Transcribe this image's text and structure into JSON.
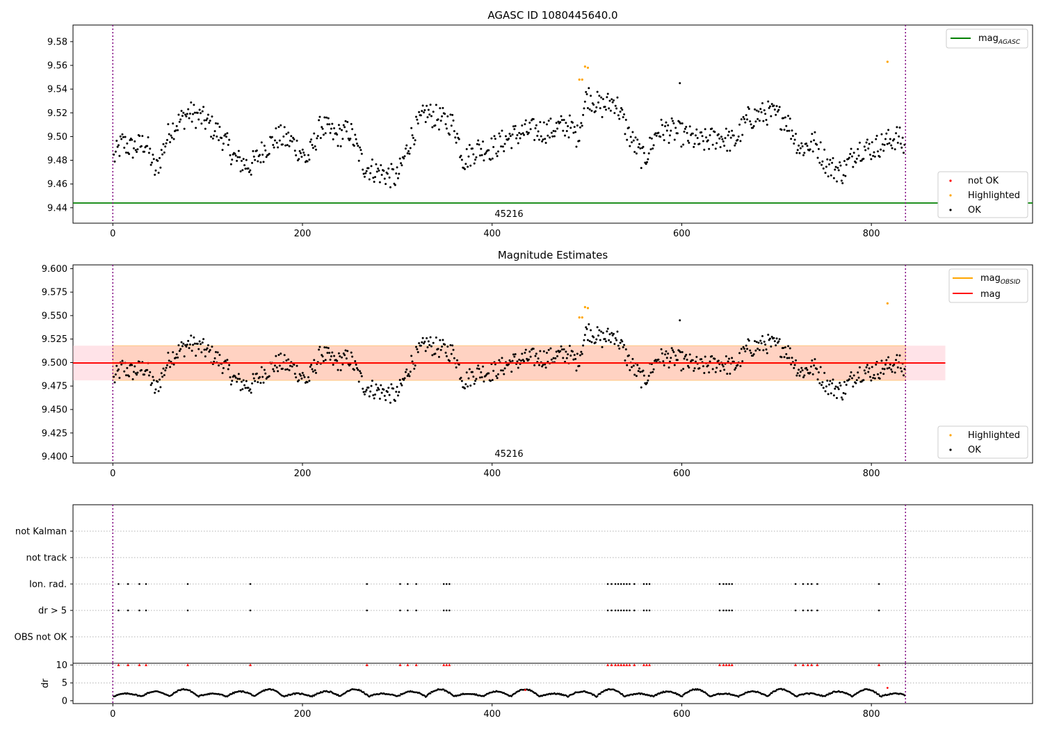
{
  "chart_data": [
    {
      "type": "scatter",
      "title": "AGASC ID 1080445640.0",
      "xlabel": "",
      "ylabel": "",
      "xlim": [
        -42,
        970
      ],
      "ylim": [
        9.427,
        9.594
      ],
      "xticks": [
        0,
        200,
        400,
        600,
        800
      ],
      "xtick_labels": [
        "0",
        "200",
        "400",
        "600",
        "800"
      ],
      "yticks": [
        9.44,
        9.46,
        9.48,
        9.5,
        9.52,
        9.54,
        9.56,
        9.58
      ],
      "ytick_labels": [
        "9.44",
        "9.46",
        "9.48",
        "9.50",
        "9.52",
        "9.54",
        "9.56",
        "9.58"
      ],
      "obsid_label": "45216",
      "obsid_label_x": 418,
      "obs_boundaries": [
        0,
        836
      ],
      "hlines": [
        {
          "name": "mag_AGASC",
          "value": 9.444,
          "color": "#008000"
        }
      ],
      "series": [
        {
          "name": "not OK",
          "color": "#ff0000",
          "points": []
        },
        {
          "name": "Highlighted",
          "color": "#ffa500",
          "points": [
            [
              492,
              9.548
            ],
            [
              495,
              9.548
            ],
            [
              498,
              9.559
            ],
            [
              501,
              9.558
            ],
            [
              817,
              9.563
            ]
          ]
        },
        {
          "name": "OK",
          "color": "#000000",
          "anchors": [
            [
              0,
              9.48
            ],
            [
              10,
              9.495
            ],
            [
              20,
              9.49
            ],
            [
              35,
              9.495
            ],
            [
              45,
              9.47
            ],
            [
              60,
              9.505
            ],
            [
              80,
              9.52
            ],
            [
              95,
              9.515
            ],
            [
              115,
              9.5
            ],
            [
              130,
              9.48
            ],
            [
              145,
              9.475
            ],
            [
              160,
              9.49
            ],
            [
              175,
              9.5
            ],
            [
              190,
              9.495
            ],
            [
              205,
              9.48
            ],
            [
              220,
              9.51
            ],
            [
              235,
              9.5
            ],
            [
              250,
              9.505
            ],
            [
              265,
              9.475
            ],
            [
              280,
              9.47
            ],
            [
              300,
              9.465
            ],
            [
              315,
              9.5
            ],
            [
              330,
              9.52
            ],
            [
              345,
              9.515
            ],
            [
              360,
              9.51
            ],
            [
              370,
              9.48
            ],
            [
              385,
              9.49
            ],
            [
              400,
              9.49
            ],
            [
              420,
              9.5
            ],
            [
              440,
              9.505
            ],
            [
              460,
              9.505
            ],
            [
              480,
              9.51
            ],
            [
              490,
              9.5
            ],
            [
              500,
              9.535
            ],
            [
              515,
              9.525
            ],
            [
              530,
              9.53
            ],
            [
              545,
              9.5
            ],
            [
              560,
              9.48
            ],
            [
              575,
              9.505
            ],
            [
              590,
              9.505
            ],
            [
              605,
              9.5
            ],
            [
              620,
              9.495
            ],
            [
              640,
              9.5
            ],
            [
              655,
              9.495
            ],
            [
              670,
              9.515
            ],
            [
              690,
              9.52
            ],
            [
              710,
              9.515
            ],
            [
              725,
              9.49
            ],
            [
              740,
              9.495
            ],
            [
              755,
              9.475
            ],
            [
              770,
              9.47
            ],
            [
              785,
              9.49
            ],
            [
              800,
              9.49
            ],
            [
              815,
              9.495
            ],
            [
              828,
              9.5
            ],
            [
              836,
              9.49
            ]
          ],
          "count": 830,
          "spread": 0.0105
        }
      ],
      "legend": [
        {
          "label": "mag",
          "subscript": "AGASC",
          "color": "#008000",
          "position": "top-right"
        },
        {
          "label": "not OK",
          "color": "#ff0000",
          "position": "bottom-right"
        },
        {
          "label": "Highlighted",
          "color": "#ffa500",
          "position": "bottom-right"
        },
        {
          "label": "OK",
          "color": "#000000",
          "position": "bottom-right"
        }
      ]
    },
    {
      "type": "scatter",
      "title": "Magnitude Estimates",
      "xlabel": "",
      "ylabel": "",
      "xlim": [
        -42,
        970
      ],
      "ylim": [
        9.393,
        9.604
      ],
      "xticks": [
        0,
        200,
        400,
        600,
        800
      ],
      "xtick_labels": [
        "0",
        "200",
        "400",
        "600",
        "800"
      ],
      "yticks": [
        9.4,
        9.425,
        9.45,
        9.475,
        9.5,
        9.525,
        9.55,
        9.575,
        9.6
      ],
      "ytick_labels": [
        "9.400",
        "9.425",
        "9.450",
        "9.475",
        "9.500",
        "9.525",
        "9.550",
        "9.575",
        "9.600"
      ],
      "obsid_label": "45216",
      "obsid_label_x": 418,
      "obs_boundaries": [
        0,
        836
      ],
      "mag": {
        "value": 9.4995,
        "band": [
          9.481,
          9.518
        ],
        "x_range": [
          -42,
          878
        ],
        "color": "#ff0000"
      },
      "mag_obsid": {
        "value": 9.4995,
        "band": [
          9.481,
          9.518
        ],
        "x_range": [
          0,
          836
        ],
        "color": "#ffa500"
      },
      "same_points_as_panel": 1,
      "legend": [
        {
          "label": "mag",
          "subscript": "OBSID",
          "color": "#ffa500",
          "position": "top-right"
        },
        {
          "label": "mag",
          "color": "#ff0000",
          "position": "top-right"
        },
        {
          "label": "Highlighted",
          "color": "#ffa500",
          "position": "bottom-right"
        },
        {
          "label": "OK",
          "color": "#000000",
          "position": "bottom-right"
        }
      ]
    },
    {
      "type": "scatter",
      "title": "",
      "categories": [
        "not Kalman",
        "not track",
        "Ion. rad.",
        "dr > 5",
        "OBS not OK"
      ],
      "xlim": [
        -42,
        970
      ],
      "obs_boundaries": [
        0,
        836
      ],
      "flag_x": [
        6,
        16,
        28,
        35,
        79,
        145,
        268,
        303,
        311,
        320,
        349,
        352,
        355,
        522,
        526,
        530,
        533,
        536,
        539,
        542,
        545,
        550,
        560,
        563,
        566,
        640,
        644,
        647,
        650,
        653,
        720,
        728,
        733,
        737,
        743,
        808
      ],
      "flagged_categories": [
        "Ion. rad.",
        "dr > 5"
      ]
    },
    {
      "type": "scatter",
      "title": "",
      "xlabel": "",
      "ylabel": "dr",
      "xlim": [
        -42,
        970
      ],
      "ylim": [
        -0.8,
        10.5
      ],
      "yticks": [
        0,
        5,
        10
      ],
      "ytick_labels": [
        "0",
        "5",
        "10"
      ],
      "xticks": [
        0,
        200,
        400,
        600,
        800
      ],
      "xtick_labels": [
        "0",
        "200",
        "400",
        "600",
        "800"
      ],
      "clip_value": 10,
      "obs_boundaries": [
        0,
        836
      ],
      "red_points": [
        [
          435,
          3.0
        ],
        [
          817,
          3.6
        ]
      ]
    }
  ]
}
